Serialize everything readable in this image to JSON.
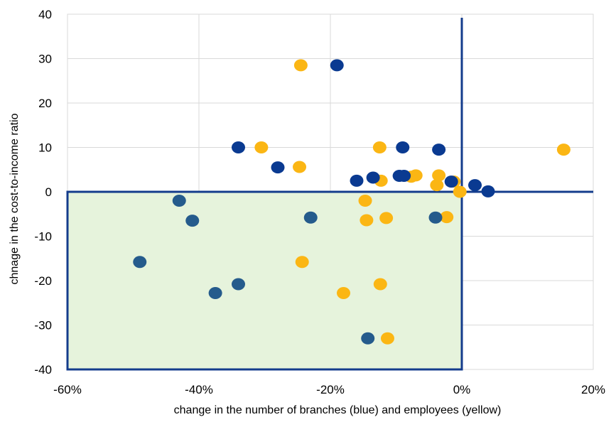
{
  "chart_data": {
    "type": "scatter",
    "title": "",
    "xlabel": "change in the number of branches (blue) and  employees (yellow)",
    "ylabel": "chnage in the cost-to-income ratio",
    "xlim": [
      -60,
      20
    ],
    "ylim": [
      -40,
      40
    ],
    "x_ticks": [
      -60,
      -40,
      -20,
      0,
      20
    ],
    "x_tick_labels": [
      "-60%",
      "-40%",
      "-20%",
      "0%",
      "20%"
    ],
    "y_ticks": [
      -40,
      -30,
      -20,
      -10,
      0,
      10,
      20,
      30,
      40
    ],
    "y_tick_labels": [
      "-40",
      "-30",
      "-20",
      "-10",
      "0",
      "10",
      "20",
      "30",
      "40"
    ],
    "grid": true,
    "shaded_quadrant": {
      "x": [
        -60,
        0
      ],
      "y": [
        -40,
        0
      ],
      "color": "#e6f3dc"
    },
    "reference_lines_color": "#143c8c",
    "series": [
      {
        "color_top": "#0a3a91",
        "color_bottom": "#255b8c",
        "points": [
          [
            -19,
            28.5
          ],
          [
            -34,
            10
          ],
          [
            -28,
            5.5
          ],
          [
            -9,
            10
          ],
          [
            -3.5,
            9.5
          ],
          [
            -16,
            2.5
          ],
          [
            -13.5,
            3.2
          ],
          [
            -9.5,
            3.6
          ],
          [
            -8.8,
            3.6
          ],
          [
            -1.6,
            2.3
          ],
          [
            2,
            1.5
          ],
          [
            4,
            0.1
          ],
          [
            -43,
            -2
          ],
          [
            -41,
            -6.5
          ],
          [
            -23,
            -5.8
          ],
          [
            -4,
            -5.8
          ],
          [
            -49,
            -15.8
          ],
          [
            -34,
            -20.8
          ],
          [
            -37.5,
            -22.8
          ],
          [
            -14.3,
            -33
          ]
        ]
      },
      {
        "color": "#fbb614",
        "points": [
          [
            -24.5,
            28.5
          ],
          [
            -30.5,
            10
          ],
          [
            -12.5,
            10
          ],
          [
            -24.7,
            5.6
          ],
          [
            -12.3,
            2.5
          ],
          [
            -7.7,
            3.4
          ],
          [
            -7,
            3.7
          ],
          [
            -3.5,
            3.7
          ],
          [
            -3.8,
            1.5
          ],
          [
            -1.2,
            2.3
          ],
          [
            -0.3,
            0
          ],
          [
            15.5,
            9.5
          ],
          [
            -14.7,
            -2
          ],
          [
            -14.5,
            -6.4
          ],
          [
            -11.5,
            -5.9
          ],
          [
            -2.3,
            -5.7
          ],
          [
            -24.3,
            -15.8
          ],
          [
            -12.4,
            -20.8
          ],
          [
            -18,
            -22.8
          ],
          [
            -11.3,
            -33
          ]
        ]
      }
    ]
  }
}
